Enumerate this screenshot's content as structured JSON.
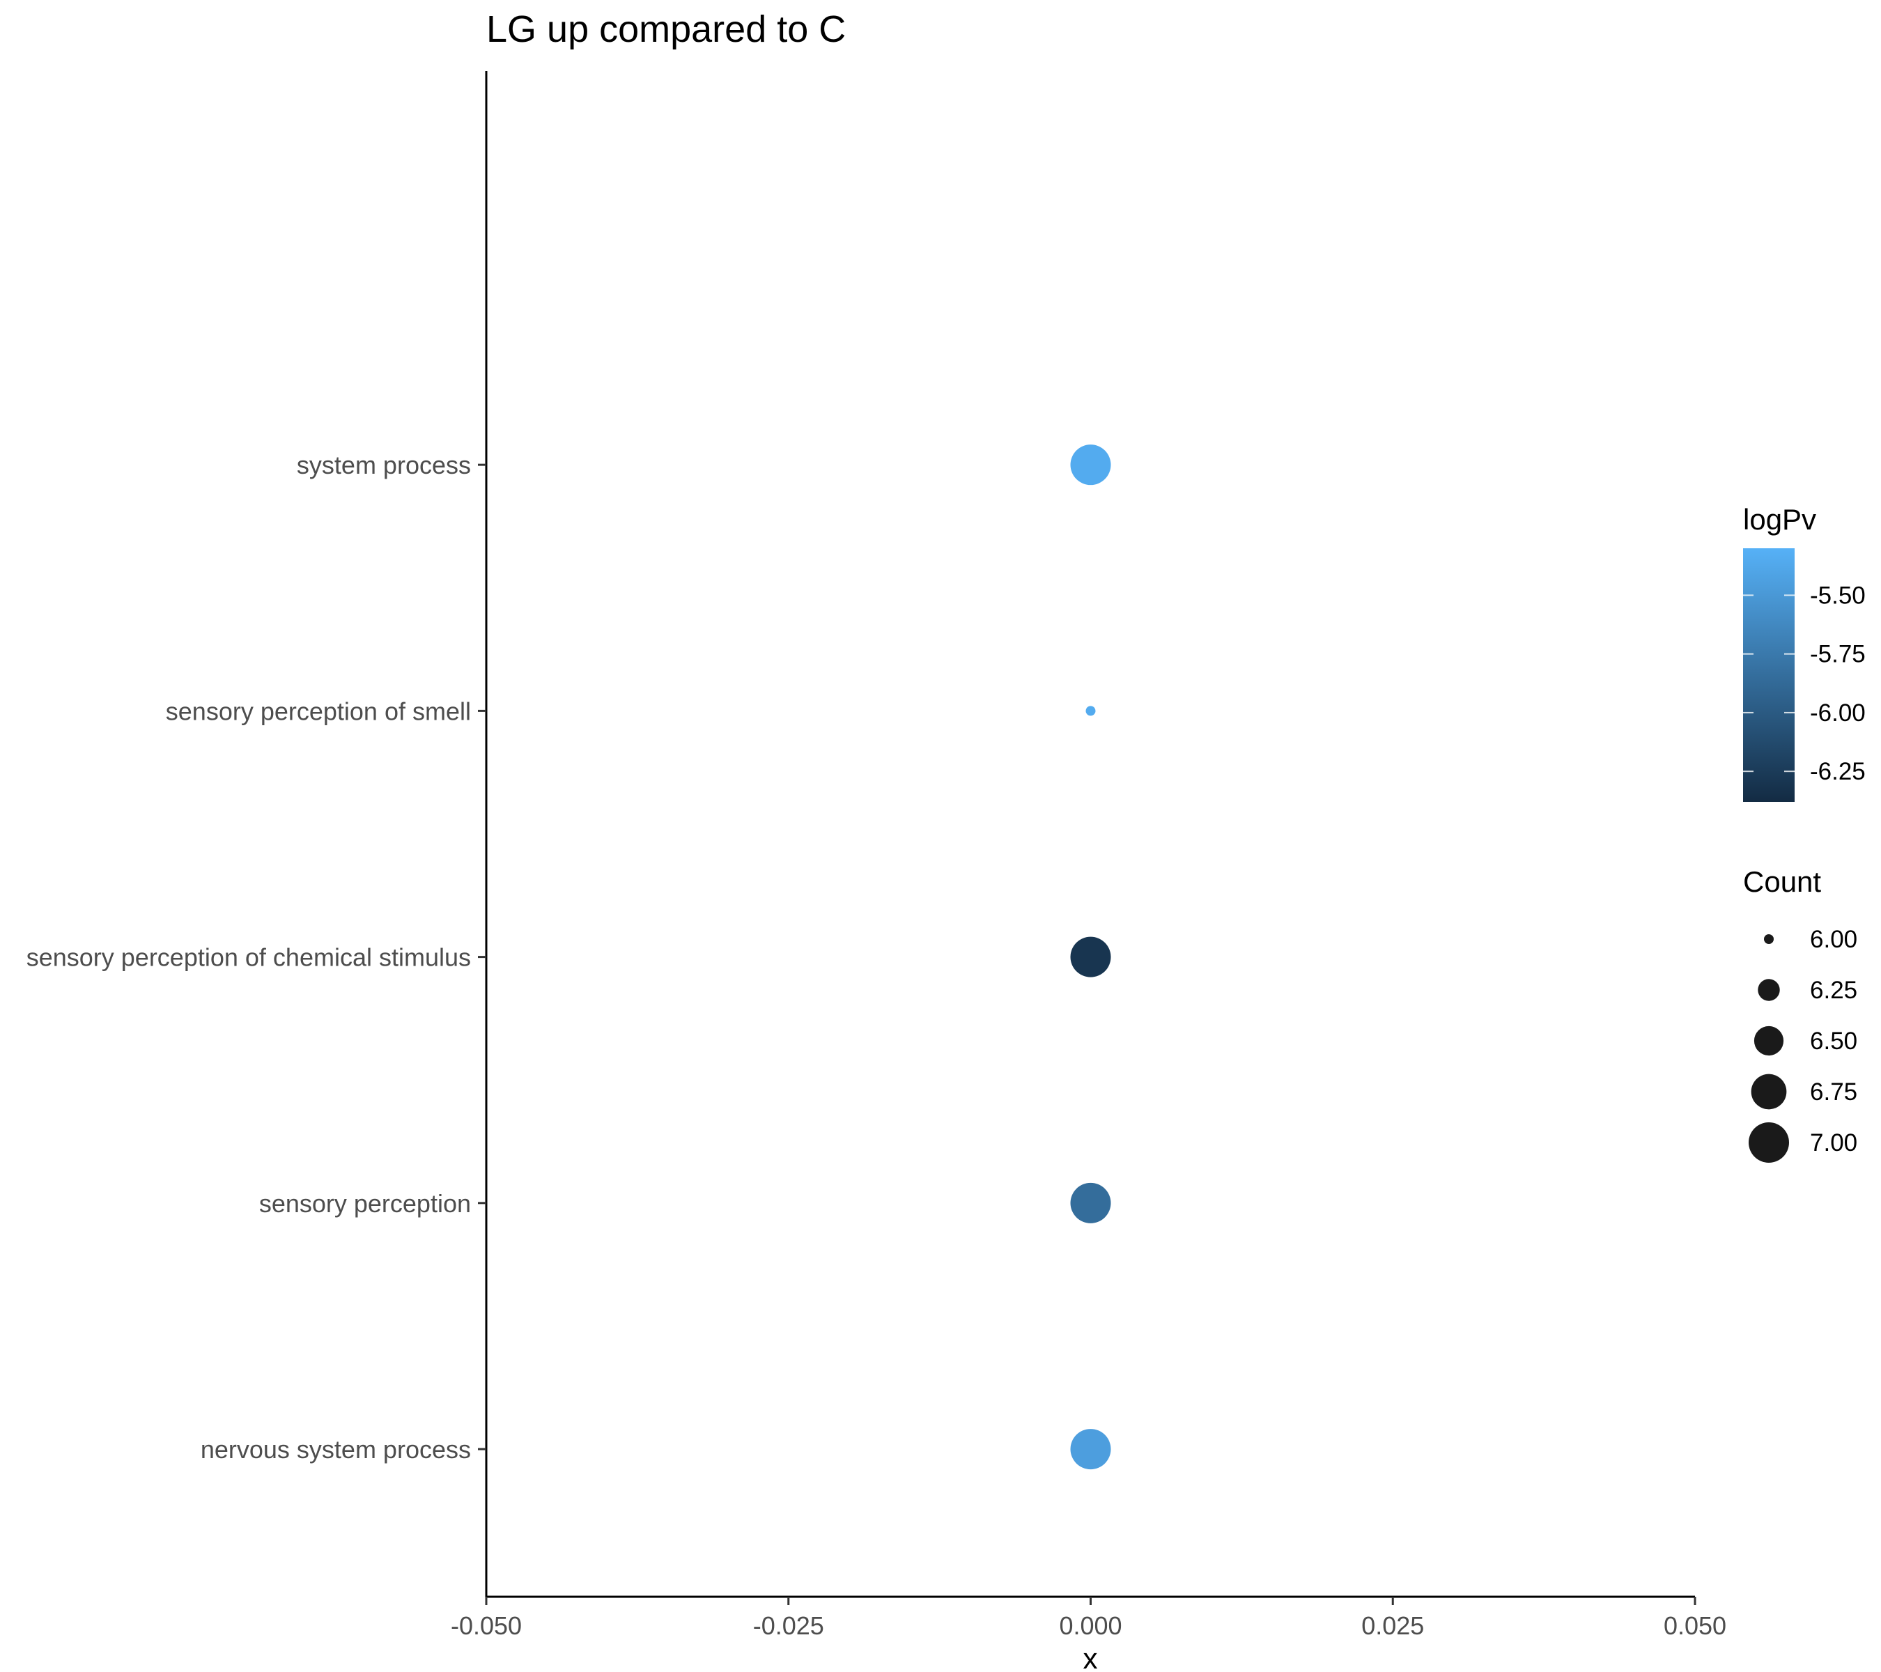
{
  "chart_data": {
    "type": "scatter",
    "title": "LG up compared to C",
    "xlabel": "x",
    "ylabel": "",
    "xlim": [
      -0.05,
      0.05
    ],
    "xticks": [
      "-0.050",
      "-0.025",
      "0.000",
      "0.025",
      "0.050"
    ],
    "xtick_values": [
      -0.05,
      -0.025,
      0,
      0.025,
      0.05
    ],
    "categories": [
      "nervous system process",
      "sensory perception",
      "sensory perception of chemical stimulus",
      "sensory perception of smell",
      "system process"
    ],
    "points": [
      {
        "term": "nervous system process",
        "x": 0,
        "count": 7,
        "logPv": -5.45
      },
      {
        "term": "sensory perception",
        "x": 0,
        "count": 7,
        "logPv": -5.85
      },
      {
        "term": "sensory perception of chemical stimulus",
        "x": 0,
        "count": 7,
        "logPv": -6.3
      },
      {
        "term": "sensory perception of smell",
        "x": 0,
        "count": 6,
        "logPv": -5.35
      },
      {
        "term": "system process",
        "x": 0,
        "count": 7,
        "logPv": -5.35
      }
    ],
    "color_legend": {
      "title": "logPv",
      "range": [
        -6.38,
        -5.3
      ],
      "low_color": "#132b43",
      "high_color": "#56b1f7",
      "ticks": [
        "-5.50",
        "-5.75",
        "-6.00",
        "-6.25"
      ],
      "tick_values": [
        -5.5,
        -5.75,
        -6.0,
        -6.25
      ]
    },
    "size_legend": {
      "title": "Count",
      "labels": [
        "6.00",
        "6.25",
        "6.50",
        "6.75",
        "7.00"
      ],
      "values": [
        6.0,
        6.25,
        6.5,
        6.75,
        7.0
      ]
    },
    "grid": false,
    "legend_position": "right"
  }
}
